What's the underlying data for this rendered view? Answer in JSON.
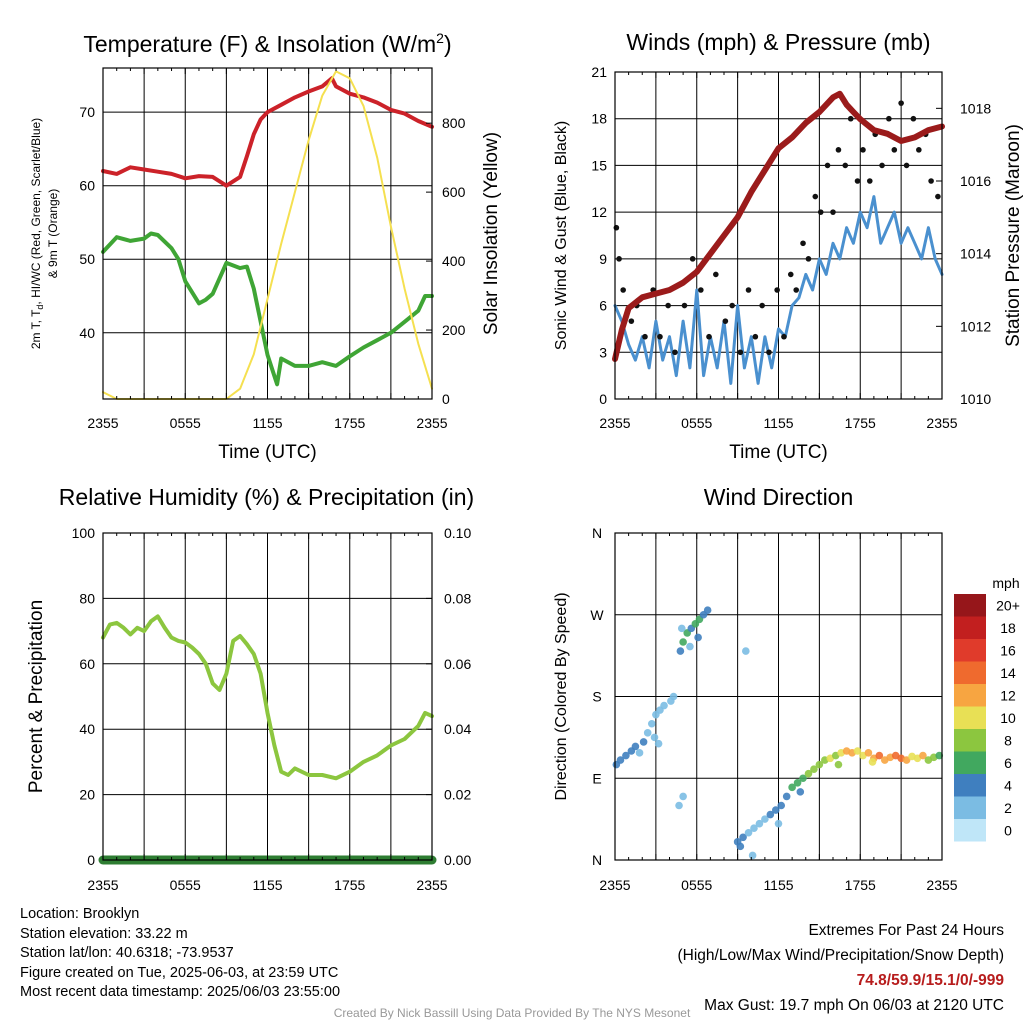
{
  "chart_data": [
    {
      "type": "line",
      "title": "Temperature (F) & Insolation (W/m",
      "title_sup": "2",
      "title_tail": ")",
      "xlabel": "Time (UTC)",
      "ylabel_left_lines": [
        "2m T, T",
        "d",
        ", HI/WC (Red, Green, Scarlet/Blue)",
        "& 9m T (Orange)"
      ],
      "ylabel_right": "Solar Insolation (Yellow)",
      "x_ticks": [
        "2355",
        "0555",
        "1155",
        "1755",
        "2355"
      ],
      "left_axis": {
        "ylim": [
          31,
          76
        ],
        "ticks": [
          40,
          50,
          60,
          70
        ]
      },
      "right_axis": {
        "ylim": [
          0,
          960
        ],
        "ticks": [
          0,
          200,
          400,
          600,
          800
        ]
      },
      "series": [
        {
          "role": "temperature",
          "color": "#cc2229",
          "axis": "left",
          "x": [
            0,
            1,
            2,
            3,
            4,
            5,
            6,
            7,
            8,
            9,
            10,
            10.5,
            11,
            11.5,
            12,
            13,
            14,
            15,
            16,
            16.7,
            17,
            18,
            19,
            20,
            21,
            22,
            23,
            24
          ],
          "y": [
            62,
            61.6,
            62.5,
            62.2,
            61.9,
            61.6,
            61,
            61.3,
            61.2,
            60,
            61.2,
            64,
            67,
            69,
            70,
            71,
            72,
            72.8,
            73.5,
            74.6,
            73.5,
            72.5,
            72,
            71.3,
            70.3,
            69.8,
            68.8,
            68
          ]
        },
        {
          "role": "dewpoint",
          "color": "#3fa535",
          "axis": "left",
          "x": [
            0,
            1,
            2,
            3,
            3.5,
            4,
            5,
            5.5,
            6,
            7,
            7.5,
            8,
            9,
            10,
            10.5,
            11,
            12,
            12.7,
            13,
            14,
            15,
            16,
            17,
            18,
            19,
            20,
            21,
            22,
            23,
            23.5,
            24
          ],
          "y": [
            51,
            53,
            52.5,
            52.8,
            53.5,
            53.3,
            51.5,
            50,
            47,
            44,
            44.5,
            45.3,
            49.5,
            48.8,
            49,
            46,
            37,
            33,
            36.5,
            35.5,
            35.5,
            36,
            35.5,
            36.8,
            38,
            39,
            40,
            41.5,
            43,
            45,
            45
          ]
        },
        {
          "role": "insolation",
          "color": "#f5e050",
          "axis": "right",
          "x": [
            0,
            1,
            2,
            3,
            4,
            5,
            6,
            7,
            8,
            9,
            10,
            11,
            12,
            13,
            14,
            15,
            16,
            17,
            18,
            19,
            20,
            21,
            22,
            23,
            24
          ],
          "y": [
            20,
            0,
            0,
            0,
            0,
            0,
            0,
            0,
            0,
            0,
            30,
            130,
            290,
            450,
            600,
            750,
            880,
            950,
            930,
            850,
            700,
            500,
            320,
            160,
            30
          ]
        }
      ]
    },
    {
      "type": "line",
      "title": "Winds (mph) & Pressure (mb)",
      "xlabel": "Time (UTC)",
      "ylabel_left": "Sonic Wind & Gust (Blue, Black)",
      "ylabel_right": "Station Pressure (Maroon)",
      "x_ticks": [
        "2355",
        "0555",
        "1155",
        "1755",
        "2355"
      ],
      "left_axis": {
        "ylim": [
          0,
          21
        ],
        "ticks": [
          0,
          3,
          6,
          9,
          12,
          15,
          18,
          21
        ]
      },
      "right_axis": {
        "ylim": [
          1010,
          1019
        ],
        "ticks": [
          1010,
          1012,
          1014,
          1016,
          1018
        ]
      },
      "series": [
        {
          "role": "wind",
          "color": "#4a90cf",
          "axis": "left",
          "x": [
            0,
            0.5,
            1,
            1.5,
            2,
            2.5,
            3,
            3.5,
            4,
            4.5,
            5,
            5.5,
            6,
            6.5,
            7,
            7.5,
            8,
            8.5,
            9,
            9.5,
            10,
            10.5,
            11,
            11.5,
            12,
            12.5,
            13,
            13.5,
            14,
            14.5,
            15,
            15.5,
            16,
            16.5,
            17,
            17.5,
            18,
            18.5,
            19,
            19.5,
            20,
            20.5,
            21,
            21.5,
            22,
            22.5,
            23,
            23.5,
            24
          ],
          "y": [
            6,
            5,
            3.5,
            2.5,
            4,
            2,
            5,
            2.5,
            4,
            1.5,
            5,
            2,
            7,
            1.5,
            4,
            2,
            5,
            1,
            6,
            2,
            4,
            1,
            4,
            2,
            4.5,
            4,
            6,
            6.5,
            8,
            7,
            9,
            8,
            10,
            9,
            11,
            10,
            12,
            11,
            13,
            10,
            11,
            12,
            10,
            11,
            10,
            9,
            11,
            9,
            8
          ]
        },
        {
          "role": "gust",
          "color": "#111111",
          "axis": "left",
          "marker": "dot",
          "x": [
            0.1,
            0.3,
            0.6,
            1.2,
            1.6,
            2.2,
            2.8,
            3.3,
            3.9,
            4.4,
            5.1,
            5.7,
            6.3,
            6.9,
            7.4,
            8.1,
            8.6,
            9.2,
            9.8,
            10.3,
            10.8,
            11.3,
            11.9,
            12.4,
            12.9,
            13.3,
            13.8,
            14.2,
            14.7,
            15.1,
            15.6,
            16.0,
            16.4,
            16.9,
            17.3,
            17.8,
            18.2,
            18.7,
            19.1,
            19.6,
            20.1,
            20.5,
            21.0,
            21.4,
            21.9,
            22.3,
            22.8,
            23.2,
            23.7
          ],
          "y": [
            11,
            9,
            7,
            5,
            6,
            4,
            7,
            4,
            6,
            3,
            6,
            9,
            7,
            4,
            8,
            5,
            6,
            3,
            7,
            4,
            6,
            3,
            7,
            4,
            8,
            7,
            10,
            9,
            13,
            12,
            15,
            12,
            16,
            15,
            18,
            14,
            16,
            14,
            17,
            15,
            18,
            16,
            19,
            15,
            18,
            16,
            17,
            14,
            13
          ]
        },
        {
          "role": "pressure",
          "color": "#9b1b1b",
          "axis": "right",
          "x": [
            0,
            0.5,
            1,
            2,
            3,
            4,
            5,
            6,
            7,
            8,
            9,
            10,
            11,
            12,
            13,
            14,
            15,
            16,
            16.5,
            17,
            17.5,
            18,
            19,
            20,
            21,
            22,
            23,
            24
          ],
          "y": [
            1011.1,
            1011.9,
            1012.5,
            1012.8,
            1012.9,
            1013,
            1013.2,
            1013.5,
            1014,
            1014.5,
            1015,
            1015.7,
            1016.3,
            1016.9,
            1017.2,
            1017.6,
            1017.9,
            1018.3,
            1018.4,
            1018.1,
            1017.9,
            1017.7,
            1017.4,
            1017.3,
            1017.1,
            1017.2,
            1017.4,
            1017.5
          ]
        }
      ]
    },
    {
      "type": "line",
      "title": "Relative Humidity (%) & Precipitation (in)",
      "ylabel_left": "Percent & Precipitation",
      "x_ticks": [
        "2355",
        "0555",
        "1155",
        "1755",
        "2355"
      ],
      "left_axis": {
        "ylim": [
          0,
          100
        ],
        "ticks": [
          0,
          20,
          40,
          60,
          80,
          100
        ]
      },
      "right_axis": {
        "ylim": [
          0,
          0.1
        ],
        "ticks": [
          "0.00",
          "0.02",
          "0.04",
          "0.06",
          "0.08",
          "0.10"
        ]
      },
      "series": [
        {
          "role": "relative humidity",
          "color": "#8cc63f",
          "axis": "left",
          "x": [
            0,
            0.5,
            1,
            1.5,
            2,
            2.5,
            3,
            3.5,
            4,
            4.5,
            5,
            5.5,
            6,
            6.5,
            7,
            7.5,
            8,
            8.5,
            9,
            9.5,
            10,
            10.5,
            11,
            11.5,
            12,
            12.5,
            13,
            13.5,
            14,
            15,
            16,
            17,
            18,
            19,
            20,
            21,
            22,
            23,
            23.5,
            24
          ],
          "y": [
            68,
            72,
            72.5,
            71,
            69,
            71,
            70,
            73,
            74.5,
            71,
            68,
            67,
            66.5,
            65,
            63,
            60,
            54,
            52,
            57,
            67,
            68.5,
            66,
            63,
            57,
            45,
            35,
            27,
            26,
            28,
            26,
            26,
            25,
            27,
            30,
            32,
            35,
            37,
            41,
            45,
            44
          ]
        },
        {
          "role": "precipitation",
          "color": "#2e7d32",
          "axis": "right",
          "x": [
            0,
            24
          ],
          "y": [
            0,
            0
          ]
        }
      ]
    },
    {
      "type": "scatter",
      "title": "Wind Direction",
      "ylabel_left": "Direction (Colored By Speed)",
      "x_ticks": [
        "2355",
        "0555",
        "1155",
        "1755",
        "2355"
      ],
      "y_ticks": [
        "N",
        "E",
        "S",
        "W",
        "N"
      ],
      "ylim_degrees": [
        0,
        360
      ],
      "colorbar": {
        "unit": "mph",
        "labels": [
          "0",
          "2",
          "4",
          "6",
          "8",
          "10",
          "12",
          "14",
          "16",
          "18",
          "20+"
        ],
        "colors": [
          "#bfe6f8",
          "#7bbce3",
          "#3f7fbf",
          "#41a85f",
          "#8cc63f",
          "#e8e055",
          "#f7a541",
          "#ef6a2e",
          "#e03b2b",
          "#c21f1f",
          "#96161a"
        ]
      },
      "points": [
        [
          0.1,
          105,
          4
        ],
        [
          0.4,
          110,
          4
        ],
        [
          0.8,
          115,
          3
        ],
        [
          1.2,
          120,
          3
        ],
        [
          1.5,
          125,
          3
        ],
        [
          1.8,
          118,
          2
        ],
        [
          2.1,
          130,
          3
        ],
        [
          2.4,
          140,
          2
        ],
        [
          2.7,
          150,
          2
        ],
        [
          3.0,
          160,
          2
        ],
        [
          3.3,
          165,
          2
        ],
        [
          3.6,
          170,
          2
        ],
        [
          2.9,
          135,
          2
        ],
        [
          3.2,
          128,
          1
        ],
        [
          4.1,
          175,
          2
        ],
        [
          4.3,
          180,
          1
        ],
        [
          4.8,
          230,
          4
        ],
        [
          5.0,
          240,
          5
        ],
        [
          5.3,
          250,
          5
        ],
        [
          5.6,
          255,
          4
        ],
        [
          5.9,
          260,
          6
        ],
        [
          6.2,
          265,
          5
        ],
        [
          6.5,
          270,
          4
        ],
        [
          6.8,
          275,
          3
        ],
        [
          6.1,
          245,
          3
        ],
        [
          5.5,
          235,
          2
        ],
        [
          4.9,
          255,
          2
        ],
        [
          4.7,
          60,
          1
        ],
        [
          5.0,
          70,
          1
        ],
        [
          9.6,
          230,
          1
        ],
        [
          9.0,
          20,
          4
        ],
        [
          9.4,
          25,
          3
        ],
        [
          9.8,
          30,
          2
        ],
        [
          10.2,
          35,
          2
        ],
        [
          10.6,
          40,
          2
        ],
        [
          11.0,
          45,
          2
        ],
        [
          11.4,
          50,
          3
        ],
        [
          11.8,
          55,
          4
        ],
        [
          12.2,
          60,
          4
        ],
        [
          12.6,
          70,
          3
        ],
        [
          13.0,
          80,
          5
        ],
        [
          13.4,
          85,
          5
        ],
        [
          13.8,
          90,
          6
        ],
        [
          14.2,
          95,
          7
        ],
        [
          14.6,
          100,
          8
        ],
        [
          15.0,
          105,
          8
        ],
        [
          15.4,
          110,
          7
        ],
        [
          15.8,
          112,
          9
        ],
        [
          16.2,
          115,
          8
        ],
        [
          16.6,
          118,
          10
        ],
        [
          17.0,
          120,
          11
        ],
        [
          17.4,
          118,
          12
        ],
        [
          17.8,
          120,
          9
        ],
        [
          18.2,
          115,
          10
        ],
        [
          18.6,
          118,
          12
        ],
        [
          19.0,
          112,
          11
        ],
        [
          19.4,
          115,
          13
        ],
        [
          19.8,
          110,
          12
        ],
        [
          20.2,
          113,
          11
        ],
        [
          20.6,
          115,
          13
        ],
        [
          21.0,
          112,
          14
        ],
        [
          21.4,
          110,
          12
        ],
        [
          21.8,
          114,
          10
        ],
        [
          22.2,
          112,
          9
        ],
        [
          22.6,
          115,
          11
        ],
        [
          23.0,
          110,
          8
        ],
        [
          23.4,
          113,
          7
        ],
        [
          23.8,
          115,
          6
        ],
        [
          12.0,
          40,
          2
        ],
        [
          10.1,
          5,
          1
        ],
        [
          9.2,
          15,
          4
        ],
        [
          13.6,
          75,
          4
        ],
        [
          16.4,
          105,
          7
        ],
        [
          18.9,
          108,
          9
        ]
      ]
    }
  ],
  "info_left": [
    "Location: Brooklyn",
    "Station elevation: 33.22 m",
    "Station lat/lon: 40.6318; -73.9537",
    "Figure created on Tue, 2025-06-03, at 23:59 UTC",
    "Most recent data timestamp: 2025/06/03 23:55:00"
  ],
  "extremes": {
    "title": "Extremes For Past 24 Hours",
    "subtitle": "(High/Low/Max Wind/Precipitation/Snow Depth)",
    "values": "74.8/59.9/15.1/0/-999",
    "max_gust": "Max Gust: 19.7 mph On 06/03 at 2120 UTC"
  },
  "credit": "Created By Nick Bassill Using Data Provided By The NYS Mesonet"
}
